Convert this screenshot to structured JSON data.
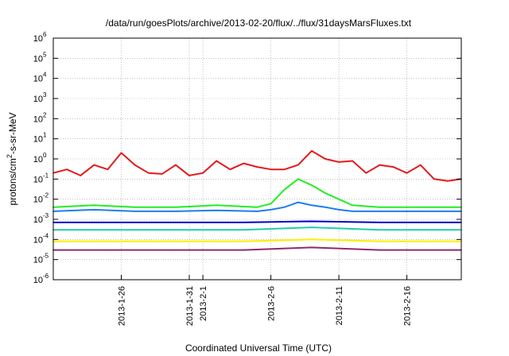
{
  "chart_data": {
    "type": "line",
    "title": "/data/run/goesPlots/archive/2013-02-20/flux/../flux/31daysMarsFluxes.txt",
    "xlabel": "Coordinated Universal Time (UTC)",
    "ylabel": "protons/cm²-s-sr-MeV",
    "yscale": "log",
    "ylim": [
      1e-06,
      1000000.0
    ],
    "xlim": [
      "2013-01-21",
      "2013-02-20"
    ],
    "grid": true,
    "y_ticks": [
      {
        "value": 1e-06,
        "label": "10",
        "exp": "-6"
      },
      {
        "value": 1e-05,
        "label": "10",
        "exp": "-5"
      },
      {
        "value": 0.0001,
        "label": "10",
        "exp": "-4"
      },
      {
        "value": 0.001,
        "label": "10",
        "exp": "-3"
      },
      {
        "value": 0.01,
        "label": "10",
        "exp": "-2"
      },
      {
        "value": 0.1,
        "label": "10",
        "exp": "-1"
      },
      {
        "value": 1.0,
        "label": "10",
        "exp": "0"
      },
      {
        "value": 10.0,
        "label": "10",
        "exp": "1"
      },
      {
        "value": 100.0,
        "label": "10",
        "exp": "2"
      },
      {
        "value": 1000.0,
        "label": "10",
        "exp": "3"
      },
      {
        "value": 10000.0,
        "label": "10",
        "exp": "4"
      },
      {
        "value": 100000.0,
        "label": "10",
        "exp": "5"
      },
      {
        "value": 1000000.0,
        "label": "10",
        "exp": "6"
      }
    ],
    "x_ticks": [
      {
        "date": "2013-01-26",
        "label": "2013-1-26"
      },
      {
        "date": "2013-01-31",
        "label": "2013-1-31"
      },
      {
        "date": "2013-02-01",
        "label": "2013-2-1"
      },
      {
        "date": "2013-02-06",
        "label": "2013-2-6"
      },
      {
        "date": "2013-02-11",
        "label": "2013-2-11"
      },
      {
        "date": "2013-02-16",
        "label": "2013-2-16"
      }
    ],
    "series": [
      {
        "color": "#e41a1c",
        "x": [
          "2013-01-21",
          "2013-01-22",
          "2013-01-23",
          "2013-01-24",
          "2013-01-25",
          "2013-01-26",
          "2013-01-27",
          "2013-01-28",
          "2013-01-29",
          "2013-01-30",
          "2013-01-31",
          "2013-02-01",
          "2013-02-02",
          "2013-02-03",
          "2013-02-04",
          "2013-02-05",
          "2013-02-06",
          "2013-02-07",
          "2013-02-08",
          "2013-02-09",
          "2013-02-10",
          "2013-02-11",
          "2013-02-12",
          "2013-02-13",
          "2013-02-14",
          "2013-02-15",
          "2013-02-16",
          "2013-02-17",
          "2013-02-18",
          "2013-02-19",
          "2013-02-20"
        ],
        "values": [
          0.2,
          0.3,
          0.15,
          0.5,
          0.3,
          2.0,
          0.5,
          0.2,
          0.18,
          0.5,
          0.15,
          0.2,
          0.8,
          0.3,
          0.6,
          0.4,
          0.3,
          0.3,
          0.5,
          2.5,
          1.0,
          0.7,
          0.8,
          0.2,
          0.5,
          0.4,
          0.2,
          0.5,
          0.1,
          0.08,
          0.1
        ]
      },
      {
        "color": "#22ee22",
        "x": [
          "2013-01-21",
          "2013-01-24",
          "2013-01-27",
          "2013-01-30",
          "2013-02-02",
          "2013-02-05",
          "2013-02-06",
          "2013-02-07",
          "2013-02-08",
          "2013-02-09",
          "2013-02-10",
          "2013-02-11",
          "2013-02-12",
          "2013-02-14",
          "2013-02-17",
          "2013-02-20"
        ],
        "values": [
          0.004,
          0.005,
          0.004,
          0.004,
          0.005,
          0.004,
          0.006,
          0.03,
          0.1,
          0.05,
          0.02,
          0.01,
          0.005,
          0.004,
          0.004,
          0.004
        ]
      },
      {
        "color": "#1e7cf0",
        "x": [
          "2013-01-21",
          "2013-01-24",
          "2013-01-27",
          "2013-01-30",
          "2013-02-02",
          "2013-02-05",
          "2013-02-06",
          "2013-02-07",
          "2013-02-08",
          "2013-02-09",
          "2013-02-10",
          "2013-02-11",
          "2013-02-12",
          "2013-02-14",
          "2013-02-17",
          "2013-02-20"
        ],
        "values": [
          0.0025,
          0.003,
          0.0025,
          0.0025,
          0.0028,
          0.0025,
          0.003,
          0.004,
          0.007,
          0.005,
          0.004,
          0.003,
          0.0025,
          0.0025,
          0.0025,
          0.0025
        ]
      },
      {
        "color": "#0000cc",
        "x": [
          "2013-01-21",
          "2013-01-25",
          "2013-01-30",
          "2013-02-04",
          "2013-02-09",
          "2013-02-14",
          "2013-02-20"
        ],
        "values": [
          0.0007,
          0.0007,
          0.0007,
          0.0007,
          0.0008,
          0.0007,
          0.0007
        ]
      },
      {
        "color": "#22ccaa",
        "x": [
          "2013-01-21",
          "2013-01-25",
          "2013-01-30",
          "2013-02-04",
          "2013-02-09",
          "2013-02-14",
          "2013-02-20"
        ],
        "values": [
          0.0003,
          0.0003,
          0.0003,
          0.0003,
          0.0004,
          0.0003,
          0.0003
        ]
      },
      {
        "color": "#ffee00",
        "x": [
          "2013-01-21",
          "2013-01-25",
          "2013-01-30",
          "2013-02-04",
          "2013-02-09",
          "2013-02-14",
          "2013-02-20"
        ],
        "values": [
          8e-05,
          8e-05,
          8e-05,
          8e-05,
          0.0001,
          8e-05,
          8e-05
        ]
      },
      {
        "color": "#8e2a6a",
        "x": [
          "2013-01-21",
          "2013-01-25",
          "2013-01-30",
          "2013-02-04",
          "2013-02-09",
          "2013-02-14",
          "2013-02-20"
        ],
        "values": [
          3e-05,
          3e-05,
          3e-05,
          3e-05,
          4e-05,
          3e-05,
          3e-05
        ]
      }
    ]
  }
}
